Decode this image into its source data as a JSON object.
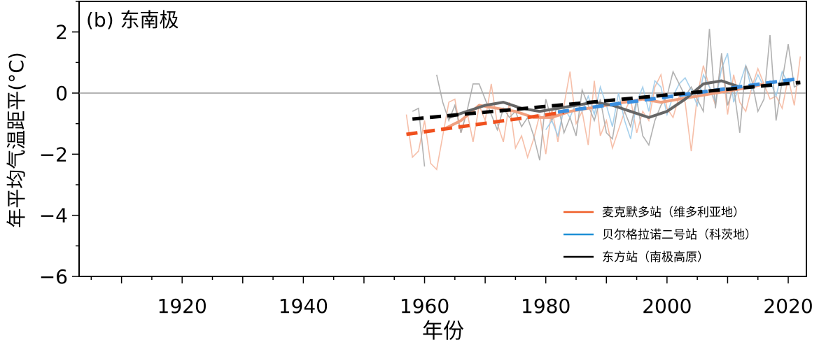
{
  "chart_data": {
    "type": "line",
    "panel_label": "(b) 东南极",
    "xlabel": "年份",
    "ylabel": "年平均气温距平(°C)",
    "xlim": [
      1903,
      2023
    ],
    "ylim": [
      -6,
      3
    ],
    "xticks": [
      1920,
      1940,
      1960,
      1980,
      2000,
      2020
    ],
    "yticks": [
      -6,
      -4,
      -2,
      0,
      2
    ],
    "ytick_labels": [
      "−6",
      "−4",
      "−2",
      "0",
      "2"
    ],
    "zero_line": true,
    "legend_position": "lower-right",
    "colors": {
      "mcmurdo": "#f0602a",
      "mcmurdo_annual": "#f5b49a",
      "mcmurdo_smooth": "#f0a080",
      "mcmurdo_trend": "#f0501e",
      "bellingshausen": "#1e90d6",
      "bellingshausen_annual": "#9ccbea",
      "bellingshausen_trend": "#3a8fe0",
      "vostok": "#000000",
      "vostok_annual": "#a8a8a8",
      "vostok_smooth": "#666666",
      "vostok_trend": "#000000"
    },
    "series": [
      {
        "name": "麦克默多站（维多利亚地）",
        "legend_color": "#f0602a",
        "x_start": 1957,
        "annual": [
          -0.7,
          -2.1,
          -1.9,
          -0.9,
          -2.3,
          -2.5,
          -1.4,
          -0.3,
          -0.2,
          -1.3,
          -0.6,
          -1.6,
          -0.4,
          -0.9,
          0.3,
          -1.0,
          -1.6,
          -0.3,
          -1.8,
          -1.4,
          -2.1,
          -1.5,
          -0.7,
          -2.0,
          -0.5,
          -1.6,
          -0.4,
          0.7,
          -1.0,
          -0.6,
          -1.7,
          0.4,
          -1.4,
          -0.9,
          -1.8,
          -1.2,
          -0.6,
          -0.2,
          -1.3,
          -0.6,
          -0.9,
          0.2,
          0.6,
          -0.5,
          -0.8,
          -0.1,
          -0.3,
          -1.9,
          -0.1,
          0.9,
          0.2,
          -0.4,
          1.2,
          -0.7,
          0.6,
          -0.3,
          -0.6,
          0.2,
          0.8,
          0.3,
          -0.2,
          -0.1,
          -0.5,
          0.5,
          -0.4,
          1.2
        ],
        "smooth_x": [
          1963,
          1966,
          1969,
          1972,
          1975,
          1978,
          1981,
          1984,
          1987,
          1990,
          1993,
          1996,
          1999,
          2002,
          2005,
          2008,
          2011,
          2014,
          2016
        ],
        "smooth": [
          -1.2,
          -0.9,
          -0.4,
          -0.5,
          -0.6,
          -0.8,
          -0.8,
          -0.6,
          -0.5,
          -0.4,
          -0.3,
          -0.2,
          -0.3,
          -0.2,
          -0.1,
          0.0,
          0.1,
          0.2,
          0.3
        ],
        "trend": {
          "x": [
            1957,
            1983
          ],
          "y": [
            -1.35,
            -0.63
          ]
        }
      },
      {
        "name": "贝尔格拉诺二号站（科茨地）",
        "legend_color": "#1e90d6",
        "x_start": 1980,
        "annual": [
          -1.2,
          -0.9,
          -1.4,
          -0.5,
          -0.8,
          -0.3,
          -0.6,
          -0.1,
          -0.7,
          0.2,
          -0.4,
          -1.1,
          0.0,
          -0.9,
          -1.5,
          -0.3,
          0.2,
          -0.6,
          0.4,
          0.2,
          -0.7,
          -0.1,
          0.3,
          0.5,
          0.1,
          -0.4,
          0.6,
          0.2,
          -0.3,
          0.8,
          1.3,
          -0.3,
          0.3,
          0.9,
          0.1,
          0.6,
          0.2,
          0.4,
          -0.1,
          0.7,
          0.3,
          0.5
        ],
        "trend": {
          "x": [
            1982,
            2022
          ],
          "y": [
            -0.62,
            0.48
          ]
        }
      },
      {
        "name": "东方站（南极高原）",
        "legend_color": "#000000",
        "x_start": 1958,
        "annual": [
          -0.6,
          -0.5,
          -2.4,
          null,
          0.6,
          -0.3,
          -0.9,
          -0.4,
          -1.3,
          -0.6,
          0.3,
          0.3,
          -0.2,
          -0.7,
          -1.2,
          -0.5,
          -0.8,
          -0.6,
          -1.1,
          -0.8,
          -1.4,
          -2.2,
          -0.2,
          -0.9,
          -0.4,
          -1.3,
          -0.8,
          -1.4,
          0.1,
          -0.4,
          -0.9,
          -0.2,
          -1.3,
          -1.5,
          -0.3,
          -0.6,
          -1.1,
          -0.2,
          -1.4,
          -1.7,
          -0.9,
          -0.4,
          -0.1,
          0.7,
          0.3,
          -0.1,
          0.2,
          -0.2,
          -0.6,
          2.1,
          -0.5,
          1.3,
          -0.4,
          0.2,
          -1.3,
          0.9,
          0.4,
          -0.6,
          -0.2,
          1.9,
          -0.9,
          0.4,
          1.6,
          0.2,
          0.3
        ],
        "smooth_x": [
          1964,
          1967,
          1970,
          1973,
          1976,
          1979,
          1982,
          1985,
          1988,
          1991,
          1994,
          1997,
          2000,
          2003,
          2006,
          2009,
          2012
        ],
        "smooth": [
          -0.8,
          -0.6,
          -0.4,
          -0.3,
          -0.5,
          -0.6,
          -0.5,
          -0.4,
          -0.3,
          -0.4,
          -0.6,
          -0.8,
          -0.6,
          -0.2,
          0.3,
          0.4,
          0.2
        ],
        "trend": {
          "x": [
            1958,
            2022
          ],
          "y": [
            -0.85,
            0.35
          ]
        }
      }
    ]
  }
}
